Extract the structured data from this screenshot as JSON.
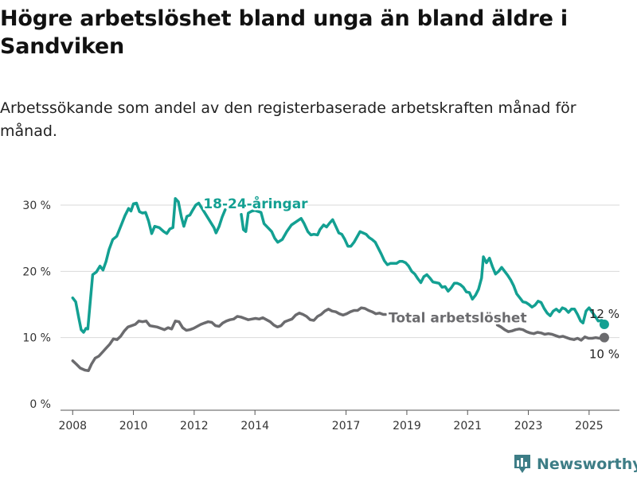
{
  "title": "Högre arbetslöshet bland unga än bland äldre i Sandviken",
  "subtitle": "Arbetssökande som andel av den registerbaserade arbetskraften månad för månad.",
  "brand": {
    "name": "Newsworthy",
    "icon": "bar-chart-logo-icon",
    "color": "#3d7d86"
  },
  "chart_data": {
    "type": "line",
    "title": "Högre arbetslöshet bland unga än bland äldre i Sandviken",
    "subtitle": "Arbetssökande som andel av den registerbaserade arbetskraften månad för månad.",
    "xlabel": "",
    "ylabel": "",
    "xlim": [
      2007.6,
      2026.0
    ],
    "ylim": [
      0,
      30
    ],
    "yticks": [
      0,
      10,
      20,
      30
    ],
    "ytick_labels": [
      "0 %",
      "10 %",
      "20 %",
      "30 %"
    ],
    "xticks": [
      2008,
      2010,
      2012,
      2014,
      2017,
      2019,
      2021,
      2023,
      2025
    ],
    "xtick_labels": [
      "2008",
      "2010",
      "2012",
      "2014",
      "2017",
      "2019",
      "2021",
      "2023",
      "2025"
    ],
    "grid": true,
    "legend": "inline labels",
    "series": [
      {
        "name": "18-24-åringar",
        "color": "#13a092",
        "end_label": "12 %",
        "points": [
          [
            2008.0,
            16.0
          ],
          [
            2008.1,
            15.4
          ],
          [
            2008.2,
            13.0
          ],
          [
            2008.28,
            11.2
          ],
          [
            2008.36,
            10.8
          ],
          [
            2008.44,
            11.4
          ],
          [
            2008.5,
            11.3
          ],
          [
            2008.58,
            15.5
          ],
          [
            2008.66,
            19.5
          ],
          [
            2008.78,
            19.9
          ],
          [
            2008.9,
            20.8
          ],
          [
            2009.0,
            20.2
          ],
          [
            2009.1,
            21.5
          ],
          [
            2009.2,
            23.3
          ],
          [
            2009.32,
            24.8
          ],
          [
            2009.45,
            25.3
          ],
          [
            2009.6,
            27.0
          ],
          [
            2009.72,
            28.4
          ],
          [
            2009.84,
            29.5
          ],
          [
            2009.92,
            29.1
          ],
          [
            2010.0,
            30.2
          ],
          [
            2010.1,
            30.3
          ],
          [
            2010.2,
            29.0
          ],
          [
            2010.3,
            28.8
          ],
          [
            2010.4,
            28.9
          ],
          [
            2010.5,
            27.6
          ],
          [
            2010.6,
            25.7
          ],
          [
            2010.7,
            26.8
          ],
          [
            2010.85,
            26.6
          ],
          [
            2011.0,
            26.0
          ],
          [
            2011.1,
            25.7
          ],
          [
            2011.2,
            26.4
          ],
          [
            2011.3,
            26.6
          ],
          [
            2011.38,
            31.0
          ],
          [
            2011.48,
            30.5
          ],
          [
            2011.58,
            28.2
          ],
          [
            2011.66,
            26.8
          ],
          [
            2011.76,
            28.3
          ],
          [
            2011.86,
            28.5
          ],
          [
            2011.96,
            29.3
          ],
          [
            2012.05,
            30.0
          ],
          [
            2012.15,
            30.3
          ],
          [
            2012.65,
            26.6
          ],
          [
            2012.72,
            25.8
          ],
          [
            2012.82,
            26.8
          ],
          [
            2012.92,
            28.2
          ],
          [
            2013.02,
            29.3
          ],
          [
            2013.55,
            28.6
          ],
          [
            2013.62,
            26.3
          ],
          [
            2013.7,
            26.0
          ],
          [
            2013.78,
            28.8
          ],
          [
            2013.9,
            29.1
          ],
          [
            2014.0,
            29.2
          ],
          [
            2014.2,
            28.9
          ],
          [
            2014.3,
            27.2
          ],
          [
            2014.45,
            26.5
          ],
          [
            2014.55,
            26.0
          ],
          [
            2014.65,
            25.0
          ],
          [
            2014.75,
            24.4
          ],
          [
            2014.9,
            24.8
          ],
          [
            2015.05,
            26.0
          ],
          [
            2015.2,
            27.0
          ],
          [
            2015.52,
            28.0
          ],
          [
            2015.62,
            27.2
          ],
          [
            2015.74,
            26.0
          ],
          [
            2015.84,
            25.5
          ],
          [
            2015.94,
            25.6
          ],
          [
            2016.06,
            25.5
          ],
          [
            2016.14,
            26.3
          ],
          [
            2016.26,
            27.0
          ],
          [
            2016.36,
            26.7
          ],
          [
            2016.46,
            27.3
          ],
          [
            2016.56,
            27.8
          ],
          [
            2016.66,
            26.8
          ],
          [
            2016.76,
            25.8
          ],
          [
            2016.86,
            25.6
          ],
          [
            2016.96,
            24.8
          ],
          [
            2017.06,
            23.8
          ],
          [
            2017.16,
            23.8
          ],
          [
            2017.26,
            24.4
          ],
          [
            2017.36,
            25.2
          ],
          [
            2017.46,
            26.0
          ],
          [
            2017.56,
            25.8
          ],
          [
            2017.66,
            25.6
          ],
          [
            2017.76,
            25.1
          ],
          [
            2017.86,
            24.8
          ],
          [
            2017.96,
            24.4
          ],
          [
            2018.06,
            23.5
          ],
          [
            2018.16,
            22.6
          ],
          [
            2018.26,
            21.6
          ],
          [
            2018.36,
            21.0
          ],
          [
            2018.46,
            21.2
          ],
          [
            2018.56,
            21.2
          ],
          [
            2018.66,
            21.2
          ],
          [
            2018.76,
            21.5
          ],
          [
            2018.86,
            21.5
          ],
          [
            2018.96,
            21.3
          ],
          [
            2019.06,
            20.8
          ],
          [
            2019.16,
            20.0
          ],
          [
            2019.26,
            19.6
          ],
          [
            2019.36,
            18.9
          ],
          [
            2019.46,
            18.3
          ],
          [
            2019.56,
            19.2
          ],
          [
            2019.66,
            19.5
          ],
          [
            2019.76,
            19.0
          ],
          [
            2019.86,
            18.4
          ],
          [
            2019.96,
            18.3
          ],
          [
            2020.06,
            18.2
          ],
          [
            2020.16,
            17.6
          ],
          [
            2020.26,
            17.7
          ],
          [
            2020.36,
            17.0
          ],
          [
            2020.46,
            17.5
          ],
          [
            2020.56,
            18.2
          ],
          [
            2020.66,
            18.2
          ],
          [
            2020.76,
            18.0
          ],
          [
            2020.86,
            17.6
          ],
          [
            2020.96,
            16.9
          ],
          [
            2021.06,
            16.8
          ],
          [
            2021.16,
            15.8
          ],
          [
            2021.26,
            16.4
          ],
          [
            2021.36,
            17.3
          ],
          [
            2021.46,
            19.0
          ],
          [
            2021.52,
            22.2
          ],
          [
            2021.62,
            21.3
          ],
          [
            2021.72,
            22.0
          ],
          [
            2021.82,
            20.7
          ],
          [
            2021.92,
            19.6
          ],
          [
            2022.02,
            20.0
          ],
          [
            2022.12,
            20.6
          ],
          [
            2022.22,
            20.0
          ],
          [
            2022.32,
            19.4
          ],
          [
            2022.42,
            18.7
          ],
          [
            2022.52,
            17.8
          ],
          [
            2022.62,
            16.6
          ],
          [
            2022.72,
            16.0
          ],
          [
            2022.82,
            15.4
          ],
          [
            2022.92,
            15.3
          ],
          [
            2023.02,
            15.0
          ],
          [
            2023.12,
            14.6
          ],
          [
            2023.22,
            14.9
          ],
          [
            2023.32,
            15.5
          ],
          [
            2023.42,
            15.3
          ],
          [
            2023.52,
            14.4
          ],
          [
            2023.62,
            13.7
          ],
          [
            2023.72,
            13.3
          ],
          [
            2023.82,
            14.0
          ],
          [
            2023.92,
            14.3
          ],
          [
            2024.02,
            13.9
          ],
          [
            2024.12,
            14.5
          ],
          [
            2024.22,
            14.3
          ],
          [
            2024.32,
            13.8
          ],
          [
            2024.42,
            14.3
          ],
          [
            2024.52,
            14.3
          ],
          [
            2024.62,
            13.5
          ],
          [
            2024.72,
            12.5
          ],
          [
            2024.8,
            12.2
          ],
          [
            2024.9,
            14.0
          ],
          [
            2025.0,
            14.5
          ],
          [
            2025.2,
            13.2
          ],
          [
            2025.3,
            12.5
          ],
          [
            2025.42,
            12.6
          ],
          [
            2025.5,
            12.0
          ]
        ]
      },
      {
        "name": "Total arbetslöshet",
        "color": "#6b6b6e",
        "end_label": "10 %",
        "points": [
          [
            2008.0,
            6.5
          ],
          [
            2008.12,
            6.0
          ],
          [
            2008.25,
            5.4
          ],
          [
            2008.4,
            5.1
          ],
          [
            2008.52,
            5.0
          ],
          [
            2008.62,
            6.0
          ],
          [
            2008.74,
            6.9
          ],
          [
            2008.86,
            7.2
          ],
          [
            2008.98,
            7.8
          ],
          [
            2009.1,
            8.4
          ],
          [
            2009.22,
            9.0
          ],
          [
            2009.34,
            9.8
          ],
          [
            2009.46,
            9.7
          ],
          [
            2009.58,
            10.2
          ],
          [
            2009.7,
            11.0
          ],
          [
            2009.82,
            11.6
          ],
          [
            2009.94,
            11.8
          ],
          [
            2010.06,
            12.0
          ],
          [
            2010.18,
            12.5
          ],
          [
            2010.3,
            12.4
          ],
          [
            2010.42,
            12.5
          ],
          [
            2010.54,
            11.8
          ],
          [
            2010.66,
            11.7
          ],
          [
            2010.78,
            11.6
          ],
          [
            2010.9,
            11.4
          ],
          [
            2011.02,
            11.2
          ],
          [
            2011.14,
            11.5
          ],
          [
            2011.26,
            11.3
          ],
          [
            2011.38,
            12.5
          ],
          [
            2011.5,
            12.4
          ],
          [
            2011.62,
            11.5
          ],
          [
            2011.74,
            11.1
          ],
          [
            2011.86,
            11.2
          ],
          [
            2011.98,
            11.4
          ],
          [
            2012.1,
            11.7
          ],
          [
            2012.22,
            12.0
          ],
          [
            2012.34,
            12.2
          ],
          [
            2012.46,
            12.4
          ],
          [
            2012.58,
            12.3
          ],
          [
            2012.7,
            11.8
          ],
          [
            2012.82,
            11.7
          ],
          [
            2012.94,
            12.2
          ],
          [
            2013.06,
            12.5
          ],
          [
            2013.18,
            12.7
          ],
          [
            2013.3,
            12.8
          ],
          [
            2013.42,
            13.2
          ],
          [
            2013.54,
            13.1
          ],
          [
            2013.66,
            12.9
          ],
          [
            2013.78,
            12.7
          ],
          [
            2013.9,
            12.8
          ],
          [
            2014.02,
            12.9
          ],
          [
            2014.14,
            12.8
          ],
          [
            2014.26,
            13.0
          ],
          [
            2014.38,
            12.7
          ],
          [
            2014.5,
            12.4
          ],
          [
            2014.62,
            11.9
          ],
          [
            2014.74,
            11.6
          ],
          [
            2014.86,
            11.8
          ],
          [
            2014.98,
            12.4
          ],
          [
            2015.1,
            12.6
          ],
          [
            2015.22,
            12.8
          ],
          [
            2015.34,
            13.4
          ],
          [
            2015.46,
            13.7
          ],
          [
            2015.58,
            13.5
          ],
          [
            2015.7,
            13.2
          ],
          [
            2015.82,
            12.7
          ],
          [
            2015.94,
            12.6
          ],
          [
            2016.06,
            13.2
          ],
          [
            2016.18,
            13.5
          ],
          [
            2016.3,
            14.0
          ],
          [
            2016.42,
            14.3
          ],
          [
            2016.54,
            14.0
          ],
          [
            2016.66,
            13.9
          ],
          [
            2016.78,
            13.6
          ],
          [
            2016.9,
            13.4
          ],
          [
            2017.02,
            13.6
          ],
          [
            2017.14,
            13.9
          ],
          [
            2017.26,
            14.1
          ],
          [
            2017.38,
            14.1
          ],
          [
            2017.5,
            14.5
          ],
          [
            2017.62,
            14.4
          ],
          [
            2017.74,
            14.1
          ],
          [
            2017.86,
            13.9
          ],
          [
            2017.98,
            13.6
          ],
          [
            2018.1,
            13.7
          ],
          [
            2018.22,
            13.5
          ],
          [
            2018.3,
            13.5
          ],
          [
            2021.98,
            11.9
          ],
          [
            2022.1,
            11.6
          ],
          [
            2022.22,
            11.2
          ],
          [
            2022.34,
            10.9
          ],
          [
            2022.46,
            11.0
          ],
          [
            2022.58,
            11.2
          ],
          [
            2022.7,
            11.3
          ],
          [
            2022.82,
            11.2
          ],
          [
            2022.94,
            10.9
          ],
          [
            2023.06,
            10.7
          ],
          [
            2023.18,
            10.6
          ],
          [
            2023.3,
            10.8
          ],
          [
            2023.42,
            10.7
          ],
          [
            2023.54,
            10.5
          ],
          [
            2023.66,
            10.6
          ],
          [
            2023.78,
            10.5
          ],
          [
            2023.9,
            10.3
          ],
          [
            2024.02,
            10.1
          ],
          [
            2024.14,
            10.2
          ],
          [
            2024.26,
            10.0
          ],
          [
            2024.38,
            9.8
          ],
          [
            2024.5,
            9.7
          ],
          [
            2024.62,
            9.9
          ],
          [
            2024.74,
            9.6
          ],
          [
            2024.86,
            10.1
          ],
          [
            2024.98,
            9.9
          ],
          [
            2025.1,
            9.9
          ],
          [
            2025.22,
            10.0
          ],
          [
            2025.34,
            9.9
          ],
          [
            2025.5,
            10.0
          ]
        ]
      }
    ],
    "annotations": [
      {
        "series": 0,
        "text": "18-24-åringar",
        "x": 2012.3,
        "y": 29.5
      },
      {
        "series": 1,
        "text": "Total arbetslöshet",
        "x": 2018.4,
        "y": 12.3
      }
    ]
  }
}
